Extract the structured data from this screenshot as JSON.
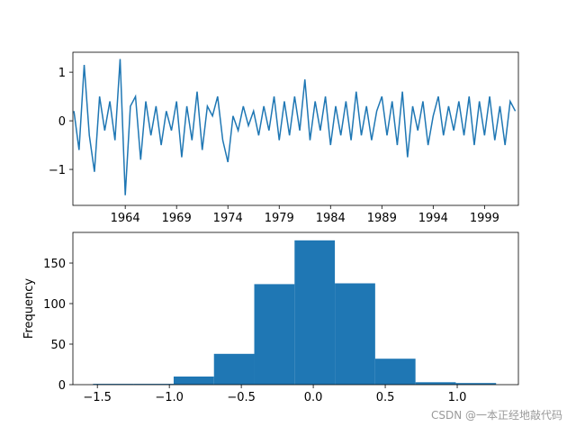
{
  "chart_data": [
    {
      "type": "line",
      "color": "#1f77b4",
      "x": [
        1959.0,
        1959.5,
        1960.0,
        1960.5,
        1961.0,
        1961.5,
        1962.0,
        1962.5,
        1963.0,
        1963.5,
        1964.0,
        1964.5,
        1965.0,
        1965.5,
        1966.0,
        1966.5,
        1967.0,
        1967.5,
        1968.0,
        1968.5,
        1969.0,
        1969.5,
        1970.0,
        1970.5,
        1971.0,
        1971.5,
        1972.0,
        1972.5,
        1973.0,
        1973.5,
        1974.0,
        1974.5,
        1975.0,
        1975.5,
        1976.0,
        1976.5,
        1977.0,
        1977.5,
        1978.0,
        1978.5,
        1979.0,
        1979.5,
        1980.0,
        1980.5,
        1981.0,
        1981.5,
        1982.0,
        1982.5,
        1983.0,
        1983.5,
        1984.0,
        1984.5,
        1985.0,
        1985.5,
        1986.0,
        1986.5,
        1987.0,
        1987.5,
        1988.0,
        1988.5,
        1989.0,
        1989.5,
        1990.0,
        1990.5,
        1991.0,
        1991.5,
        1992.0,
        1992.5,
        1993.0,
        1993.5,
        1994.0,
        1994.5,
        1995.0,
        1995.5,
        1996.0,
        1996.5,
        1997.0,
        1997.5,
        1998.0,
        1998.5,
        1999.0,
        1999.5,
        2000.0,
        2000.5,
        2001.0,
        2001.5,
        2002.0
      ],
      "values": [
        0.2,
        -0.6,
        1.15,
        -0.3,
        -1.05,
        0.5,
        -0.2,
        0.4,
        -0.4,
        1.27,
        -1.53,
        0.3,
        0.5,
        -0.8,
        0.4,
        -0.3,
        0.3,
        -0.5,
        0.2,
        -0.2,
        0.4,
        -0.75,
        0.3,
        -0.4,
        0.6,
        -0.6,
        0.3,
        0.1,
        0.5,
        -0.4,
        -0.85,
        0.1,
        -0.2,
        0.3,
        -0.1,
        0.2,
        -0.3,
        0.3,
        -0.2,
        0.5,
        -0.4,
        0.4,
        -0.3,
        0.5,
        -0.2,
        0.85,
        -0.4,
        0.4,
        -0.2,
        0.5,
        -0.5,
        0.3,
        -0.3,
        0.4,
        -0.4,
        0.6,
        -0.3,
        0.3,
        -0.4,
        0.2,
        0.5,
        -0.3,
        0.4,
        -0.5,
        0.6,
        -0.75,
        0.3,
        -0.2,
        0.4,
        -0.5,
        0.1,
        0.5,
        -0.3,
        0.3,
        -0.2,
        0.4,
        -0.3,
        0.5,
        -0.5,
        0.4,
        -0.3,
        0.5,
        -0.4,
        0.3,
        -0.5,
        0.4,
        0.2
      ],
      "xlim": [
        1958.9,
        2002.3
      ],
      "xticks": [
        1964,
        1969,
        1974,
        1979,
        1984,
        1989,
        1994,
        1999
      ],
      "ylim": [
        -1.74,
        1.41
      ],
      "yticks": [
        {
          "value": -1,
          "label": "−1"
        },
        0,
        1
      ]
    },
    {
      "type": "histogram",
      "color": "#1f77b4",
      "ylabel": "Frequency",
      "bins": [
        -1.53,
        -1.25,
        -0.97,
        -0.69,
        -0.41,
        -0.13,
        0.15,
        0.43,
        0.71,
        0.99,
        1.27
      ],
      "values": [
        1,
        1,
        10,
        38,
        124,
        178,
        125,
        32,
        3,
        2
      ],
      "xlim": [
        -1.67,
        1.425
      ],
      "xticks": [
        {
          "value": -1.5,
          "label": "−1.5"
        },
        {
          "value": -1,
          "label": "−1.0"
        },
        {
          "value": -0.5,
          "label": "−0.5"
        },
        {
          "value": 0,
          "label": "0.0"
        },
        {
          "value": 0.5,
          "label": "0.5"
        },
        {
          "value": 1,
          "label": "1.0"
        }
      ],
      "ylim": [
        0,
        187.8
      ],
      "yticks": [
        0,
        50,
        100,
        150
      ]
    }
  ],
  "watermark": "CSDN @一本正经地敲代码"
}
